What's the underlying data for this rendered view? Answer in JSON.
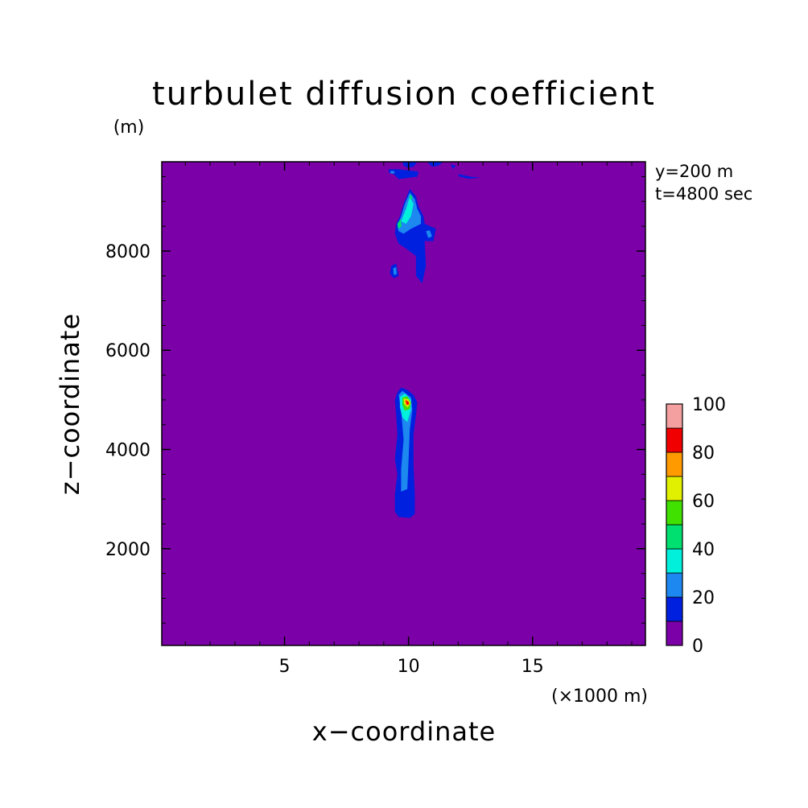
{
  "chart_data": {
    "type": "heatmap",
    "title": "turbulet diffusion coefficient",
    "xlabel": "x−coordinate",
    "ylabel": "z−coordinate",
    "x_unit": "(×1000 m)",
    "y_unit": "(m)",
    "xlim": [
      0.05,
      19.55
    ],
    "ylim": [
      50,
      9800
    ],
    "x_ticks": [
      "5",
      "10",
      "15"
    ],
    "x_tick_values": [
      5,
      10,
      15
    ],
    "y_ticks": [
      "2000",
      "4000",
      "6000",
      "8000"
    ],
    "y_tick_values": [
      2000,
      4000,
      6000,
      8000
    ],
    "annotations": [
      "y=200 m",
      "t=4800 sec"
    ],
    "colorbar": {
      "levels": [
        0,
        10,
        20,
        30,
        40,
        50,
        60,
        70,
        80,
        90,
        100
      ],
      "tick_labels": [
        "0",
        "20",
        "40",
        "60",
        "80",
        "100"
      ],
      "tick_values": [
        0,
        20,
        40,
        60,
        80,
        100
      ],
      "colors": [
        "#7b00a8",
        "#0020e0",
        "#1c88f0",
        "#00f0dc",
        "#00e070",
        "#40e000",
        "#e0f000",
        "#ff9a00",
        "#f00000",
        "#f4a0a0"
      ]
    },
    "background_value": 0,
    "features": [
      {
        "level": 1,
        "polygon": [
          [
            9.55,
            5150
          ],
          [
            9.7,
            5250
          ],
          [
            9.95,
            5200
          ],
          [
            10.2,
            5100
          ],
          [
            10.35,
            4950
          ],
          [
            10.3,
            4700
          ],
          [
            10.2,
            4300
          ],
          [
            10.2,
            3700
          ],
          [
            10.25,
            3100
          ],
          [
            10.25,
            2700
          ],
          [
            10.05,
            2620
          ],
          [
            9.6,
            2640
          ],
          [
            9.45,
            2750
          ],
          [
            9.45,
            3100
          ],
          [
            9.55,
            3500
          ],
          [
            9.45,
            3800
          ],
          [
            9.55,
            4300
          ],
          [
            9.5,
            4700
          ],
          [
            9.45,
            5000
          ]
        ]
      },
      {
        "level": 2,
        "polygon": [
          [
            9.6,
            5100
          ],
          [
            9.75,
            5180
          ],
          [
            10.1,
            5050
          ],
          [
            10.15,
            4800
          ],
          [
            10.05,
            4400
          ],
          [
            10.0,
            3800
          ],
          [
            9.95,
            3200
          ],
          [
            9.7,
            3150
          ],
          [
            9.7,
            3600
          ],
          [
            9.8,
            4200
          ],
          [
            9.7,
            4800
          ]
        ]
      },
      {
        "level": 3,
        "polygon": [
          [
            9.65,
            5060
          ],
          [
            9.85,
            5130
          ],
          [
            10.1,
            5000
          ],
          [
            10.1,
            4800
          ],
          [
            9.95,
            4550
          ],
          [
            9.75,
            4650
          ],
          [
            9.65,
            4850
          ]
        ]
      },
      {
        "level": 5,
        "polygon": [
          [
            9.75,
            5050
          ],
          [
            9.95,
            5070
          ],
          [
            10.1,
            4950
          ],
          [
            10.05,
            4820
          ],
          [
            9.85,
            4780
          ],
          [
            9.75,
            4900
          ]
        ]
      },
      {
        "level": 6,
        "polygon": [
          [
            9.8,
            5030
          ],
          [
            10.0,
            5010
          ],
          [
            10.08,
            4920
          ],
          [
            9.95,
            4850
          ],
          [
            9.82,
            4920
          ]
        ]
      },
      {
        "level": 7,
        "polygon": [
          [
            9.85,
            5010
          ],
          [
            10.0,
            4980
          ],
          [
            10.05,
            4910
          ],
          [
            9.92,
            4880
          ],
          [
            9.87,
            4940
          ]
        ]
      },
      {
        "level": 8,
        "polygon": [
          [
            9.88,
            4990
          ],
          [
            9.99,
            4960
          ],
          [
            10.02,
            4915
          ],
          [
            9.93,
            4900
          ]
        ]
      },
      {
        "level": 1,
        "polygon": [
          [
            9.5,
            8550
          ],
          [
            9.65,
            8700
          ],
          [
            9.8,
            8950
          ],
          [
            10.05,
            9250
          ],
          [
            10.3,
            9100
          ],
          [
            10.4,
            8900
          ],
          [
            10.6,
            8700
          ],
          [
            10.65,
            8550
          ],
          [
            11.1,
            8450
          ],
          [
            11.0,
            8200
          ],
          [
            10.65,
            8200
          ],
          [
            10.7,
            7700
          ],
          [
            10.55,
            7350
          ],
          [
            10.3,
            7500
          ],
          [
            10.3,
            7900
          ],
          [
            9.9,
            8050
          ],
          [
            9.6,
            8150
          ],
          [
            9.45,
            8350
          ]
        ]
      },
      {
        "level": 2,
        "polygon": [
          [
            9.55,
            8500
          ],
          [
            9.7,
            8700
          ],
          [
            9.85,
            8950
          ],
          [
            10.05,
            9180
          ],
          [
            10.25,
            9050
          ],
          [
            10.35,
            8850
          ],
          [
            10.5,
            8700
          ],
          [
            10.5,
            8550
          ],
          [
            10.1,
            8450
          ],
          [
            9.8,
            8350
          ],
          [
            9.6,
            8400
          ]
        ]
      },
      {
        "level": 3,
        "polygon": [
          [
            9.7,
            8600
          ],
          [
            9.9,
            8850
          ],
          [
            10.05,
            9100
          ],
          [
            10.2,
            8950
          ],
          [
            10.1,
            8700
          ],
          [
            9.9,
            8550
          ]
        ]
      },
      {
        "level": 4,
        "polygon": [
          [
            9.55,
            8550
          ],
          [
            9.68,
            8650
          ],
          [
            9.72,
            8500
          ],
          [
            9.6,
            8450
          ]
        ]
      },
      {
        "level": 4,
        "polygon": [
          [
            10.05,
            9120
          ],
          [
            10.12,
            9130
          ],
          [
            10.15,
            9050
          ],
          [
            10.05,
            9040
          ]
        ]
      },
      {
        "level": 2,
        "polygon": [
          [
            10.7,
            8400
          ],
          [
            10.85,
            8420
          ],
          [
            10.95,
            8300
          ],
          [
            10.8,
            8260
          ]
        ]
      },
      {
        "level": 1,
        "polygon": [
          [
            9.3,
            7700
          ],
          [
            9.5,
            7750
          ],
          [
            9.6,
            7500
          ],
          [
            9.4,
            7450
          ],
          [
            9.25,
            7550
          ]
        ]
      },
      {
        "level": 2,
        "polygon": [
          [
            9.38,
            7650
          ],
          [
            9.5,
            7680
          ],
          [
            9.52,
            7530
          ],
          [
            9.4,
            7520
          ]
        ]
      },
      {
        "level": 1,
        "polygon": [
          [
            9.2,
            9650
          ],
          [
            9.6,
            9650
          ],
          [
            10.4,
            9600
          ],
          [
            10.35,
            9500
          ],
          [
            9.6,
            9450
          ],
          [
            9.4,
            9550
          ],
          [
            9.2,
            9580
          ]
        ]
      },
      {
        "level": 2,
        "polygon": [
          [
            9.3,
            9620
          ],
          [
            9.45,
            9600
          ],
          [
            9.4,
            9560
          ],
          [
            9.25,
            9570
          ]
        ]
      },
      {
        "level": 1,
        "polygon": [
          [
            9.75,
            9800
          ],
          [
            10.35,
            9800
          ],
          [
            10.2,
            9700
          ],
          [
            9.95,
            9680
          ],
          [
            9.8,
            9720
          ]
        ]
      },
      {
        "level": 1,
        "polygon": [
          [
            10.75,
            9800
          ],
          [
            11.4,
            9800
          ],
          [
            11.2,
            9720
          ],
          [
            10.95,
            9700
          ]
        ]
      },
      {
        "level": 1,
        "polygon": [
          [
            11.7,
            9750
          ],
          [
            11.9,
            9720
          ],
          [
            11.8,
            9650
          ]
        ]
      },
      {
        "level": 1,
        "polygon": [
          [
            12.0,
            9550
          ],
          [
            12.5,
            9500
          ],
          [
            12.9,
            9480
          ],
          [
            12.4,
            9460
          ],
          [
            12.05,
            9500
          ]
        ]
      }
    ]
  }
}
